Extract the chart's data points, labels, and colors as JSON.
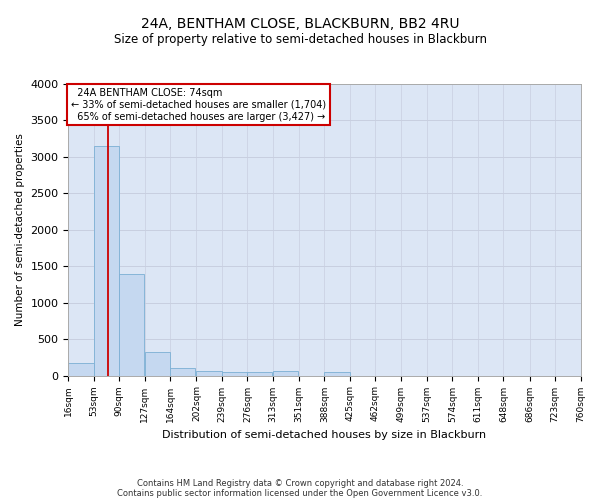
{
  "title_line1": "24A, BENTHAM CLOSE, BLACKBURN, BB2 4RU",
  "title_line2": "Size of property relative to semi-detached houses in Blackburn",
  "xlabel": "Distribution of semi-detached houses by size in Blackburn",
  "ylabel": "Number of semi-detached properties",
  "footnote_line1": "Contains HM Land Registry data © Crown copyright and database right 2024.",
  "footnote_line2": "Contains public sector information licensed under the Open Government Licence v3.0.",
  "bin_labels": [
    "16sqm",
    "53sqm",
    "90sqm",
    "127sqm",
    "164sqm",
    "202sqm",
    "239sqm",
    "276sqm",
    "313sqm",
    "351sqm",
    "388sqm",
    "425sqm",
    "462sqm",
    "499sqm",
    "537sqm",
    "574sqm",
    "611sqm",
    "648sqm",
    "686sqm",
    "723sqm",
    "760sqm"
  ],
  "bin_edges": [
    16,
    53,
    90,
    127,
    164,
    202,
    239,
    276,
    313,
    351,
    388,
    425,
    462,
    499,
    537,
    574,
    611,
    648,
    686,
    723,
    760
  ],
  "bar_heights": [
    175,
    3150,
    1400,
    320,
    110,
    65,
    55,
    45,
    60,
    0,
    55,
    0,
    0,
    0,
    0,
    0,
    0,
    0,
    0,
    0
  ],
  "bar_color": "#c5d8f0",
  "bar_edge_color": "#7bafd4",
  "grid_color": "#c8cfe0",
  "property_size": 74,
  "property_label": "24A BENTHAM CLOSE: 74sqm",
  "pct_smaller": 33,
  "count_smaller": 1704,
  "pct_larger": 65,
  "count_larger": 3427,
  "vline_color": "#cc0000",
  "annotation_box_edgecolor": "#cc0000",
  "ylim": [
    0,
    4000
  ],
  "yticks": [
    0,
    500,
    1000,
    1500,
    2000,
    2500,
    3000,
    3500,
    4000
  ],
  "bg_color": "#dce6f5",
  "title1_fontsize": 10,
  "title2_fontsize": 8.5
}
